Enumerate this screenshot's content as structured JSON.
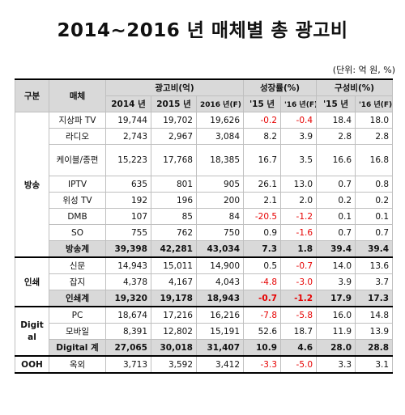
{
  "title": "2014~2016 년 매체별 총 광고비",
  "unit": "(단위: 억 원, %)",
  "header": {
    "group": "구분",
    "medium": "매체",
    "ad_spend": "광고비(억)",
    "growth": "성장률(%)",
    "share": "구성비(%)",
    "y2014": "2014 년",
    "y2015": "2015 년",
    "y2016f": "2016 년(F)",
    "g15": "'15 년",
    "g16f": "'16 년(F)",
    "s15": "'15 년",
    "s16f": "'16 년(F)"
  },
  "rows": [
    {
      "group": "방송",
      "medium": "지상파 TV",
      "v2014": "19,744",
      "v2015": "19,702",
      "v2016": "19,626",
      "g15": "-0.2",
      "g16": "-0.4",
      "s15": "18.4",
      "s16": "18.0"
    },
    {
      "medium": "라디오",
      "v2014": "2,743",
      "v2015": "2,967",
      "v2016": "3,084",
      "g15": "8.2",
      "g16": "3.9",
      "s15": "2.8",
      "s16": "2.8"
    },
    {
      "medium": "케이블/종편",
      "v2014": "15,223",
      "v2015": "17,768",
      "v2016": "18,385",
      "g15": "16.7",
      "g16": "3.5",
      "s15": "16.6",
      "s16": "16.8"
    },
    {
      "medium": "IPTV",
      "v2014": "635",
      "v2015": "801",
      "v2016": "905",
      "g15": "26.1",
      "g16": "13.0",
      "s15": "0.7",
      "s16": "0.8"
    },
    {
      "medium": "위성 TV",
      "v2014": "192",
      "v2015": "196",
      "v2016": "200",
      "g15": "2.1",
      "g16": "2.0",
      "s15": "0.2",
      "s16": "0.2"
    },
    {
      "medium": "DMB",
      "v2014": "107",
      "v2015": "85",
      "v2016": "84",
      "g15": "-20.5",
      "g16": "-1.2",
      "s15": "0.1",
      "s16": "0.1"
    },
    {
      "medium": "SO",
      "v2014": "755",
      "v2015": "762",
      "v2016": "750",
      "g15": "0.9",
      "g16": "-1.6",
      "s15": "0.7",
      "s16": "0.7"
    },
    {
      "medium": "방송계",
      "v2014": "39,398",
      "v2015": "42,281",
      "v2016": "43,034",
      "g15": "7.3",
      "g16": "1.8",
      "s15": "39.4",
      "s16": "39.4"
    },
    {
      "group": "인쇄",
      "medium": "신문",
      "v2014": "14,943",
      "v2015": "15,011",
      "v2016": "14,900",
      "g15": "0.5",
      "g16": "-0.7",
      "s15": "14.0",
      "s16": "13.6"
    },
    {
      "medium": "잡지",
      "v2014": "4,378",
      "v2015": "4,167",
      "v2016": "4,043",
      "g15": "-4.8",
      "g16": "-3.0",
      "s15": "3.9",
      "s16": "3.7"
    },
    {
      "medium": "인쇄계",
      "v2014": "19,320",
      "v2015": "19,178",
      "v2016": "18,943",
      "g15": "-0.7",
      "g16": "-1.2",
      "s15": "17.9",
      "s16": "17.3"
    },
    {
      "group": "Digital",
      "medium": "PC",
      "v2014": "18,674",
      "v2015": "17,216",
      "v2016": "16,216",
      "g15": "-7.8",
      "g16": "-5.8",
      "s15": "16.0",
      "s16": "14.8"
    },
    {
      "medium": "모바일",
      "v2014": "8,391",
      "v2015": "12,802",
      "v2016": "15,191",
      "g15": "52.6",
      "g16": "18.7",
      "s15": "11.9",
      "s16": "13.9"
    },
    {
      "medium": "Digital 계",
      "v2014": "27,065",
      "v2015": "30,018",
      "v2016": "31,407",
      "g15": "10.9",
      "g16": "4.6",
      "s15": "28.0",
      "s16": "28.8"
    },
    {
      "group": "OOH",
      "medium": "옥외",
      "v2014": "3,713",
      "v2015": "3,592",
      "v2016": "3,412",
      "g15": "-3.3",
      "g16": "-5.0",
      "s15": "3.3",
      "s16": "3.1"
    }
  ]
}
